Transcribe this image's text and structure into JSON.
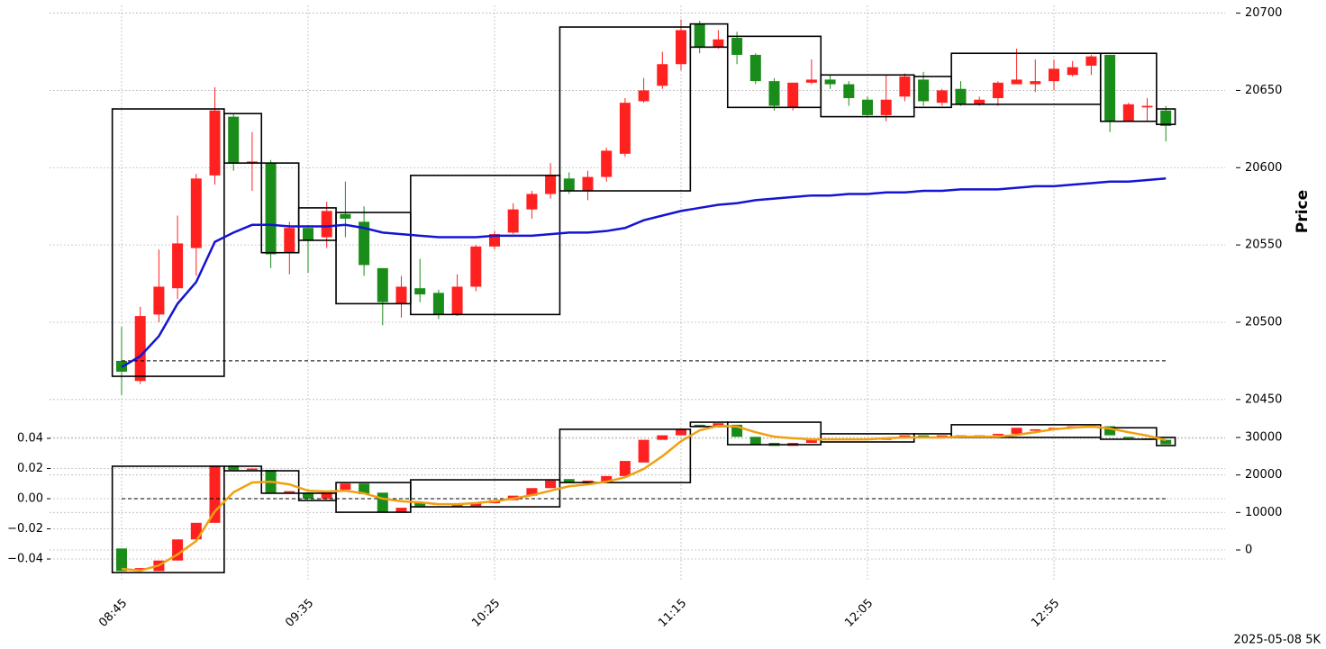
{
  "chart_data": [
    {
      "type": "candlestick",
      "categories": [
        "08:45",
        null,
        null,
        null,
        null,
        null,
        null,
        null,
        null,
        null,
        "09:35",
        null,
        null,
        null,
        null,
        null,
        null,
        null,
        null,
        null,
        "10:25",
        null,
        null,
        null,
        null,
        null,
        null,
        null,
        null,
        null,
        "11:15",
        null,
        null,
        null,
        null,
        null,
        null,
        null,
        null,
        null,
        "12:05",
        null,
        null,
        null,
        null,
        null,
        null,
        null,
        null,
        null,
        "12:55",
        null,
        null,
        null,
        null,
        null,
        null
      ],
      "open": [
        20475,
        20462,
        20505,
        20522,
        20548,
        20595,
        20633,
        20603,
        20603,
        20545,
        20561,
        20555,
        20570,
        20565,
        20535,
        20512,
        20522,
        20519,
        20505,
        20523,
        20549,
        20558,
        20573,
        20583,
        20593,
        20585,
        20594,
        20609,
        20643,
        20653,
        20667,
        20693,
        20678,
        20684,
        20673,
        20656,
        20639,
        20655,
        20657,
        20654,
        20644,
        20634,
        20646,
        20657,
        20642,
        20651,
        20641,
        20645,
        20654,
        20654,
        20656,
        20660,
        20666,
        20673,
        20630,
        20639,
        20637
      ],
      "high": [
        20497,
        20510,
        20547,
        20569,
        20596,
        20652,
        20635,
        20623,
        20605,
        20565,
        20563,
        20578,
        20591,
        20575,
        20535,
        20530,
        20541,
        20521,
        20531,
        20550,
        20559,
        20577,
        20585,
        20603,
        20597,
        20598,
        20613,
        20645,
        20658,
        20675,
        20696,
        20695,
        20689,
        20688,
        20674,
        20658,
        20655,
        20670,
        20660,
        20656,
        20646,
        20660,
        20661,
        20662,
        20651,
        20656,
        20646,
        20656,
        20677,
        20670,
        20670,
        20669,
        20673,
        20673,
        20642,
        20645,
        20640
      ],
      "low": [
        20453,
        20460,
        20500,
        20515,
        20530,
        20589,
        20598,
        20585,
        20535,
        20531,
        20532,
        20548,
        20555,
        20530,
        20498,
        20503,
        20513,
        20502,
        20504,
        20520,
        20547,
        20557,
        20567,
        20580,
        20583,
        20579,
        20591,
        20607,
        20642,
        20651,
        20663,
        20674,
        20677,
        20667,
        20654,
        20637,
        20637,
        20654,
        20651,
        20640,
        20633,
        20630,
        20643,
        20640,
        20640,
        20640,
        20640,
        20640,
        20654,
        20649,
        20650,
        20659,
        20660,
        20623,
        20630,
        20630,
        20617
      ],
      "close": [
        20468,
        20504,
        20523,
        20551,
        20593,
        20637,
        20603,
        20604,
        20544,
        20561,
        20553,
        20572,
        20567,
        20537,
        20513,
        20523,
        20518,
        20505,
        20523,
        20549,
        20557,
        20573,
        20583,
        20595,
        20585,
        20594,
        20611,
        20642,
        20650,
        20667,
        20689,
        20678,
        20683,
        20673,
        20656,
        20640,
        20655,
        20657,
        20654,
        20645,
        20634,
        20644,
        20659,
        20643,
        20650,
        20641,
        20644,
        20655,
        20657,
        20656,
        20664,
        20665,
        20672,
        20630,
        20641,
        20640,
        20627
      ],
      "up_color": "#ff2020",
      "down_color": "#1a8c1a",
      "series": [
        {
          "color": "#1414d2",
          "values": [
            20471,
            20478,
            20491,
            20512,
            20526,
            20552,
            20558,
            20563,
            20563,
            20562,
            20562,
            20562,
            20563,
            20561,
            20558,
            20557,
            20556,
            20555,
            20555,
            20555,
            20556,
            20556,
            20556,
            20557,
            20558,
            20558,
            20559,
            20561,
            20566,
            20569,
            20572,
            20574,
            20576,
            20577,
            20579,
            20580,
            20581,
            20582,
            20582,
            20583,
            20583,
            20584,
            20584,
            20585,
            20585,
            20586,
            20586,
            20586,
            20587,
            20588,
            20588,
            20589,
            20590,
            20591,
            20591,
            20592,
            20593
          ]
        }
      ],
      "hline": 20475,
      "boxes": [
        {
          "from": 0,
          "to": 5,
          "high": 20638,
          "low": 20465
        },
        {
          "from": 6,
          "to": 7,
          "high": 20635,
          "low": 20603
        },
        {
          "from": 8,
          "to": 9,
          "high": 20603,
          "low": 20545
        },
        {
          "from": 10,
          "to": 11,
          "high": 20574,
          "low": 20553
        },
        {
          "from": 12,
          "to": 15,
          "high": 20571,
          "low": 20512
        },
        {
          "from": 16,
          "to": 23,
          "high": 20595,
          "low": 20505
        },
        {
          "from": 24,
          "to": 30,
          "high": 20691,
          "low": 20585
        },
        {
          "from": 31,
          "to": 32,
          "high": 20693,
          "low": 20678
        },
        {
          "from": 33,
          "to": 37,
          "high": 20685,
          "low": 20639
        },
        {
          "from": 38,
          "to": 42,
          "high": 20660,
          "low": 20633
        },
        {
          "from": 43,
          "to": 44,
          "high": 20659,
          "low": 20639
        },
        {
          "from": 45,
          "to": 52,
          "high": 20674,
          "low": 20641
        },
        {
          "from": 53,
          "to": 55,
          "high": 20674,
          "low": 20630
        },
        {
          "from": 56,
          "to": 56,
          "high": 20638,
          "low": 20628
        }
      ],
      "ylabel": "Price",
      "ylim": [
        20440,
        20705
      ],
      "yticks": [
        20450,
        20500,
        20550,
        20600,
        20650,
        20700
      ],
      "grid": true
    },
    {
      "type": "candlestick",
      "open": [
        -0.033,
        -0.047,
        -0.048,
        -0.041,
        -0.027,
        -0.016,
        0.022,
        0.019,
        0.019,
        0.004,
        0.004,
        0.0,
        0.006,
        0.01,
        0.004,
        -0.009,
        -0.003,
        -0.003,
        -0.005,
        -0.005,
        -0.003,
        -0.001,
        0.002,
        0.007,
        0.013,
        0.011,
        0.011,
        0.015,
        0.024,
        0.039,
        0.042,
        0.049,
        0.048,
        0.049,
        0.041,
        0.037,
        0.035,
        0.037,
        0.04,
        0.04,
        0.04,
        0.039,
        0.04,
        0.042,
        0.041,
        0.042,
        0.041,
        0.042,
        0.043,
        0.045,
        0.046,
        0.047,
        0.047,
        0.048,
        0.041,
        0.04,
        0.039
      ],
      "close": [
        -0.048,
        -0.046,
        -0.041,
        -0.027,
        -0.016,
        0.022,
        0.019,
        0.02,
        0.004,
        0.005,
        0.0,
        0.005,
        0.01,
        0.003,
        -0.009,
        -0.006,
        -0.005,
        -0.004,
        -0.003,
        -0.003,
        -0.001,
        0.002,
        0.007,
        0.012,
        0.011,
        0.012,
        0.015,
        0.025,
        0.039,
        0.042,
        0.046,
        0.048,
        0.05,
        0.041,
        0.036,
        0.035,
        0.037,
        0.039,
        0.039,
        0.039,
        0.039,
        0.04,
        0.042,
        0.041,
        0.042,
        0.041,
        0.042,
        0.043,
        0.047,
        0.046,
        0.047,
        0.048,
        0.048,
        0.042,
        0.04,
        0.039,
        0.036
      ],
      "up_color": "#ff2020",
      "down_color": "#1a8c1a",
      "series": [
        {
          "color": "#f0a010",
          "axis": "y2",
          "values": [
            -5040,
            -5500,
            -4100,
            -1200,
            2400,
            10300,
            15400,
            18000,
            18200,
            17500,
            15800,
            15600,
            15800,
            15100,
            13700,
            13000,
            12700,
            12200,
            12200,
            12500,
            13000,
            13700,
            14600,
            15800,
            17000,
            17500,
            18200,
            19400,
            21600,
            25000,
            29000,
            31900,
            33100,
            32900,
            31400,
            30200,
            29800,
            29500,
            29500,
            29500,
            29500,
            29800,
            30000,
            30000,
            30000,
            30200,
            30200,
            30200,
            30700,
            31400,
            32200,
            32600,
            32900,
            32400,
            31400,
            30500,
            29300
          ]
        }
      ],
      "hline": 0,
      "boxes": [
        {
          "from": 0,
          "to": 5,
          "high": 0.0215,
          "low": -0.049
        },
        {
          "from": 6,
          "to": 7,
          "high": 0.0215,
          "low": 0.0185
        },
        {
          "from": 8,
          "to": 9,
          "high": 0.0185,
          "low": 0.0036
        },
        {
          "from": 10,
          "to": 11,
          "high": 0.0036,
          "low": -0.0012
        },
        {
          "from": 12,
          "to": 15,
          "high": 0.0107,
          "low": -0.009
        },
        {
          "from": 16,
          "to": 23,
          "high": 0.0125,
          "low": -0.0054
        },
        {
          "from": 24,
          "to": 30,
          "high": 0.046,
          "low": 0.0107
        },
        {
          "from": 31,
          "to": 32,
          "high": 0.0507,
          "low": 0.0478
        },
        {
          "from": 33,
          "to": 37,
          "high": 0.0507,
          "low": 0.0358
        },
        {
          "from": 38,
          "to": 42,
          "high": 0.043,
          "low": 0.0376
        },
        {
          "from": 43,
          "to": 44,
          "high": 0.043,
          "low": 0.0406
        },
        {
          "from": 45,
          "to": 52,
          "high": 0.049,
          "low": 0.0406
        },
        {
          "from": 53,
          "to": 55,
          "high": 0.047,
          "low": 0.0394
        },
        {
          "from": 56,
          "to": 56,
          "high": 0.0406,
          "low": 0.0352
        }
      ],
      "ylim": [
        -0.054,
        0.054
      ],
      "yticks": [
        {
          "value": -0.04,
          "label": "−0.04"
        },
        {
          "value": -0.02,
          "label": "−0.02"
        },
        {
          "value": 0,
          "label": "0.00"
        },
        {
          "value": 0.02,
          "label": "0.02"
        },
        {
          "value": 0.04,
          "label": "0.04"
        }
      ],
      "y2lim": [
        -8040,
        35400
      ],
      "y2ticks": [
        0,
        10000,
        20000,
        30000
      ],
      "grid": true
    }
  ],
  "footer": "2025-05-08 5K"
}
